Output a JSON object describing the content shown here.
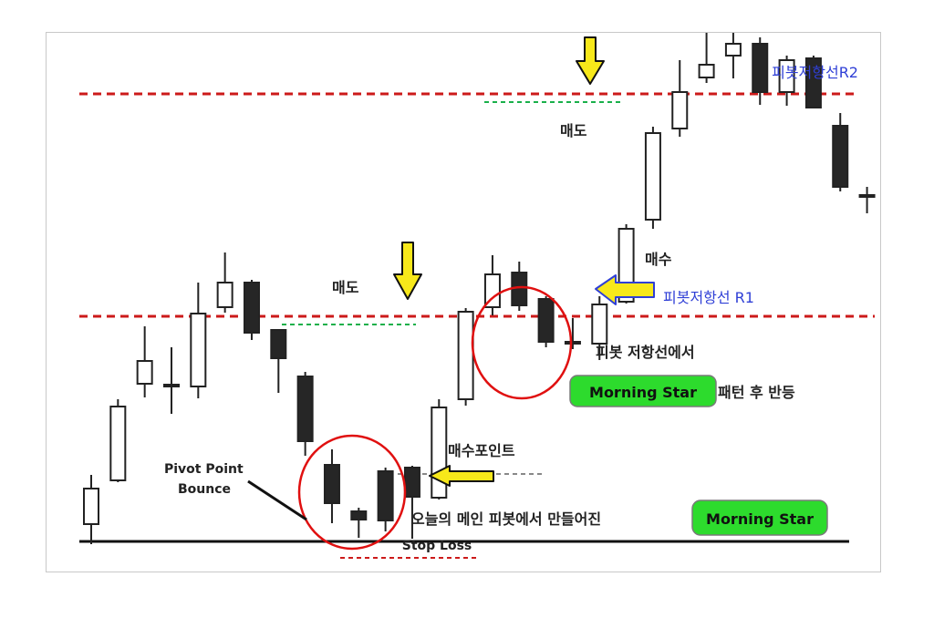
{
  "chart_data": {
    "type": "candlestick",
    "candles": [
      {
        "open": 46,
        "close": 85,
        "high": 100,
        "low": 24
      },
      {
        "open": 94,
        "close": 175,
        "high": 183,
        "low": 92
      },
      {
        "open": 200,
        "close": 225,
        "high": 263,
        "low": 185
      },
      {
        "open": 199,
        "close": 199,
        "high": 240,
        "low": 167
      },
      {
        "open": 197,
        "close": 277,
        "high": 311,
        "low": 184
      },
      {
        "open": 284,
        "close": 311,
        "high": 344,
        "low": 278
      },
      {
        "open": 311,
        "close": 256,
        "high": 314,
        "low": 248
      },
      {
        "open": 259,
        "close": 228,
        "high": 260,
        "low": 190
      },
      {
        "open": 208,
        "close": 137,
        "high": 213,
        "low": 121
      },
      {
        "open": 111,
        "close": 69,
        "high": 128,
        "low": 47
      },
      {
        "open": 60,
        "close": 51,
        "high": 64,
        "low": 31
      },
      {
        "open": 104,
        "close": 50,
        "high": 108,
        "low": 38
      },
      {
        "open": 108,
        "close": 76,
        "high": 110,
        "low": 30
      },
      {
        "open": 75,
        "close": 174,
        "high": 183,
        "low": 73
      },
      {
        "open": 183,
        "close": 279,
        "high": 283,
        "low": 176
      },
      {
        "open": 284,
        "close": 320,
        "high": 341,
        "low": 275
      },
      {
        "open": 322,
        "close": 286,
        "high": 334,
        "low": 280
      },
      {
        "open": 293,
        "close": 246,
        "high": 296,
        "low": 240
      },
      {
        "open": 246,
        "close": 246,
        "high": 272,
        "low": 238
      },
      {
        "open": 244,
        "close": 287,
        "high": 296,
        "low": 226
      },
      {
        "open": 290,
        "close": 370,
        "high": 375,
        "low": 288
      },
      {
        "open": 380,
        "close": 475,
        "high": 482,
        "low": 370
      },
      {
        "open": 480,
        "close": 520,
        "high": 555,
        "low": 471
      },
      {
        "open": 536,
        "close": 550,
        "high": 592,
        "low": 530
      },
      {
        "open": 560,
        "close": 573,
        "high": 592,
        "low": 535
      },
      {
        "open": 573,
        "close": 520,
        "high": 580,
        "low": 506
      },
      {
        "open": 520,
        "close": 555,
        "high": 560,
        "low": 505
      },
      {
        "open": 557,
        "close": 503,
        "high": 560,
        "low": 503
      },
      {
        "open": 483,
        "close": 416,
        "high": 497,
        "low": 411
      },
      {
        "open": 407,
        "close": 407,
        "high": 416,
        "low": 387
      },
      {
        "open": 400,
        "close": 443,
        "high": 453,
        "low": 385
      }
    ],
    "levels": [
      {
        "name": "피봇저항선R2",
        "value": 572
      },
      {
        "name": "피봇저항선 R1",
        "value": 318
      },
      {
        "name": "Stop Loss",
        "value": 27
      }
    ],
    "grid": false
  },
  "annotations": {
    "r2_label": "피봇저항선R2",
    "r1_label": "피봇저항선 R1",
    "sell_upper": "매도",
    "sell_lower": "매도",
    "buy_label": "매수",
    "pivot_bounce_line1": "Pivot Point",
    "pivot_bounce_line2": "Bounce",
    "r1_note": "피봇 저항선에서",
    "badge_text": "Morning Star",
    "badge_suffix": "패턴 후 반등",
    "buy_point": "매수포인트",
    "bottom_note": "오늘의 메인 피봇에서 만들어진",
    "stop_loss": "Stop Loss"
  },
  "colors": {
    "resistance": "#cc1a1a",
    "label_blue": "#2f3fd6",
    "arrow_yellow": "#f7e81a",
    "guide_green": "#19b04a",
    "circle_red": "#e01010",
    "badge_green": "#2ddb2d",
    "candle_black": "#262626"
  }
}
